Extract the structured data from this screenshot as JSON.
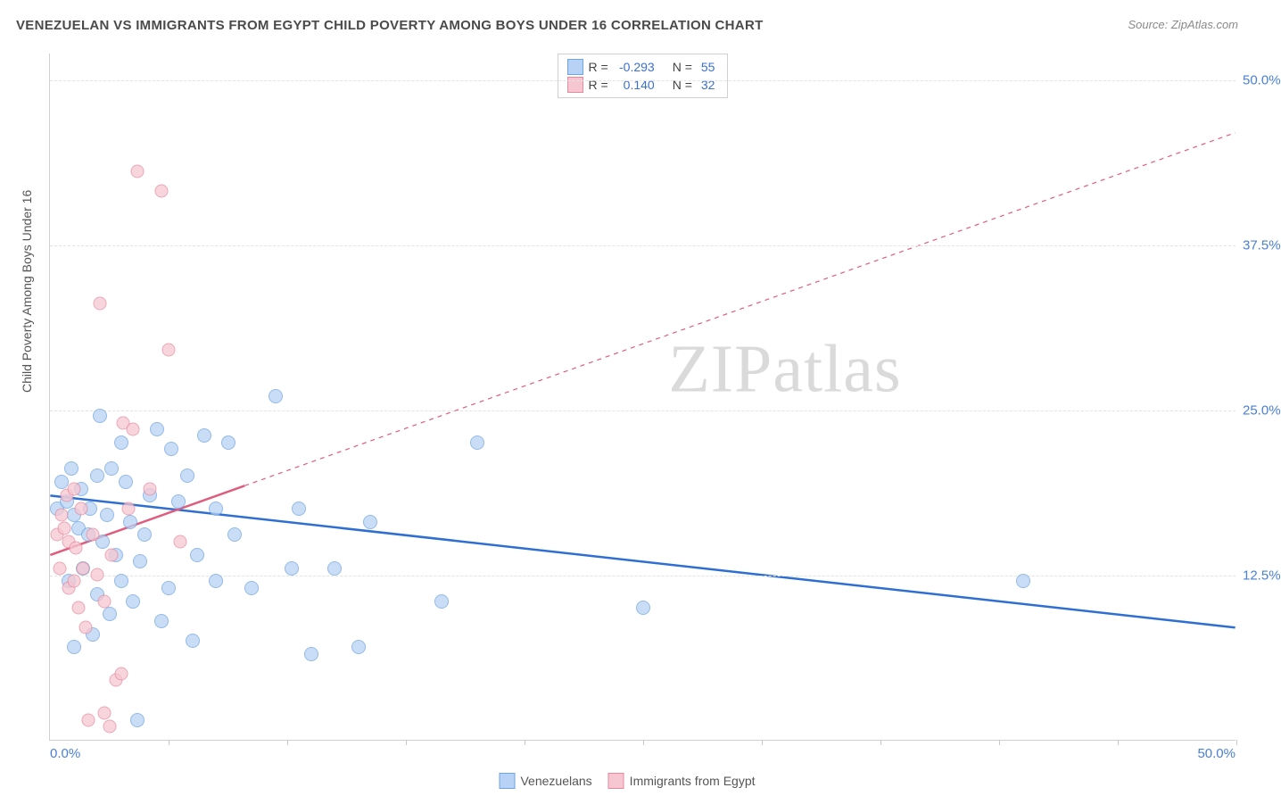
{
  "title": "VENEZUELAN VS IMMIGRANTS FROM EGYPT CHILD POVERTY AMONG BOYS UNDER 16 CORRELATION CHART",
  "source_label": "Source: ZipAtlas.com",
  "yaxis_label": "Child Poverty Among Boys Under 16",
  "watermark": "ZIPatlas",
  "axes": {
    "xmin": 0,
    "xmax": 50,
    "ymin": 0,
    "ymax": 52,
    "x_origin_label": "0.0%",
    "x_max_label": "50.0%",
    "x_ticks": [
      5,
      10,
      15,
      20,
      25,
      30,
      35,
      40,
      45,
      50
    ],
    "y_gridlines": [
      12.5,
      25.0,
      37.5,
      50.0
    ],
    "y_tick_labels": [
      "12.5%",
      "25.0%",
      "37.5%",
      "50.0%"
    ]
  },
  "series": [
    {
      "key": "venezuelans",
      "label": "Venezuelans",
      "fill": "#b7d2f4",
      "stroke": "#6fa4e0",
      "line_color": "#2f6fd0",
      "line_width": 2.5,
      "marker_size": 16,
      "marker_opacity": 0.75,
      "R": "-0.293",
      "N": "55",
      "trend": {
        "x1": 0,
        "y1": 18.5,
        "x2": 50,
        "y2": 8.5,
        "solid_until_x": 50
      },
      "points": [
        [
          0.3,
          17.5
        ],
        [
          0.5,
          19.5
        ],
        [
          0.7,
          18.0
        ],
        [
          0.8,
          12.0
        ],
        [
          0.9,
          20.5
        ],
        [
          1.0,
          17.0
        ],
        [
          1.0,
          7.0
        ],
        [
          1.2,
          16.0
        ],
        [
          1.3,
          19.0
        ],
        [
          1.4,
          13.0
        ],
        [
          1.6,
          15.5
        ],
        [
          1.7,
          17.5
        ],
        [
          1.8,
          8.0
        ],
        [
          2.0,
          20.0
        ],
        [
          2.0,
          11.0
        ],
        [
          2.1,
          24.5
        ],
        [
          2.2,
          15.0
        ],
        [
          2.4,
          17.0
        ],
        [
          2.5,
          9.5
        ],
        [
          2.6,
          20.5
        ],
        [
          2.8,
          14.0
        ],
        [
          3.0,
          22.5
        ],
        [
          3.0,
          12.0
        ],
        [
          3.2,
          19.5
        ],
        [
          3.4,
          16.5
        ],
        [
          3.5,
          10.5
        ],
        [
          3.7,
          1.5
        ],
        [
          3.8,
          13.5
        ],
        [
          4.0,
          15.5
        ],
        [
          4.2,
          18.5
        ],
        [
          4.5,
          23.5
        ],
        [
          4.7,
          9.0
        ],
        [
          5.0,
          11.5
        ],
        [
          5.1,
          22.0
        ],
        [
          5.4,
          18.0
        ],
        [
          5.8,
          20.0
        ],
        [
          6.0,
          7.5
        ],
        [
          6.2,
          14.0
        ],
        [
          6.5,
          23.0
        ],
        [
          7.0,
          12.0
        ],
        [
          7.0,
          17.5
        ],
        [
          7.5,
          22.5
        ],
        [
          7.8,
          15.5
        ],
        [
          8.5,
          11.5
        ],
        [
          9.5,
          26.0
        ],
        [
          10.2,
          13.0
        ],
        [
          10.5,
          17.5
        ],
        [
          11.0,
          6.5
        ],
        [
          12.0,
          13.0
        ],
        [
          13.0,
          7.0
        ],
        [
          13.5,
          16.5
        ],
        [
          18.0,
          22.5
        ],
        [
          25.0,
          10.0
        ],
        [
          41.0,
          12.0
        ],
        [
          16.5,
          10.5
        ]
      ]
    },
    {
      "key": "egypt",
      "label": "Immigrants from Egypt",
      "fill": "#f6c7d1",
      "stroke": "#e48aa0",
      "line_color": "#e05c7e",
      "line_width": 2.5,
      "marker_size": 15,
      "marker_opacity": 0.75,
      "R": "0.140",
      "N": "32",
      "trend": {
        "x1": 0,
        "y1": 14.0,
        "x2": 50,
        "y2": 46.0,
        "solid_until_x": 8.2
      },
      "points": [
        [
          0.3,
          15.5
        ],
        [
          0.4,
          13.0
        ],
        [
          0.5,
          17.0
        ],
        [
          0.6,
          16.0
        ],
        [
          0.7,
          18.5
        ],
        [
          0.8,
          11.5
        ],
        [
          0.8,
          15.0
        ],
        [
          1.0,
          12.0
        ],
        [
          1.0,
          19.0
        ],
        [
          1.1,
          14.5
        ],
        [
          1.2,
          10.0
        ],
        [
          1.3,
          17.5
        ],
        [
          1.4,
          13.0
        ],
        [
          1.5,
          8.5
        ],
        [
          1.6,
          1.5
        ],
        [
          1.8,
          15.5
        ],
        [
          2.0,
          12.5
        ],
        [
          2.1,
          33.0
        ],
        [
          2.3,
          10.5
        ],
        [
          2.3,
          2.0
        ],
        [
          2.5,
          1.0
        ],
        [
          2.6,
          14.0
        ],
        [
          2.8,
          4.5
        ],
        [
          3.0,
          5.0
        ],
        [
          3.1,
          24.0
        ],
        [
          3.3,
          17.5
        ],
        [
          3.5,
          23.5
        ],
        [
          3.7,
          43.0
        ],
        [
          4.2,
          19.0
        ],
        [
          4.7,
          41.5
        ],
        [
          5.0,
          29.5
        ],
        [
          5.5,
          15.0
        ]
      ]
    }
  ],
  "legend_top": {
    "rows": [
      {
        "swatch_series": 0,
        "r_label": "R =",
        "n_label": "N ="
      },
      {
        "swatch_series": 1,
        "r_label": "R =",
        "n_label": "N ="
      }
    ]
  },
  "style": {
    "plot_bg": "#ffffff",
    "grid_color": "#e3e3e3",
    "axis_color": "#d0d0d0",
    "tick_label_color": "#4a7fd6",
    "title_color": "#4a4a4a"
  }
}
